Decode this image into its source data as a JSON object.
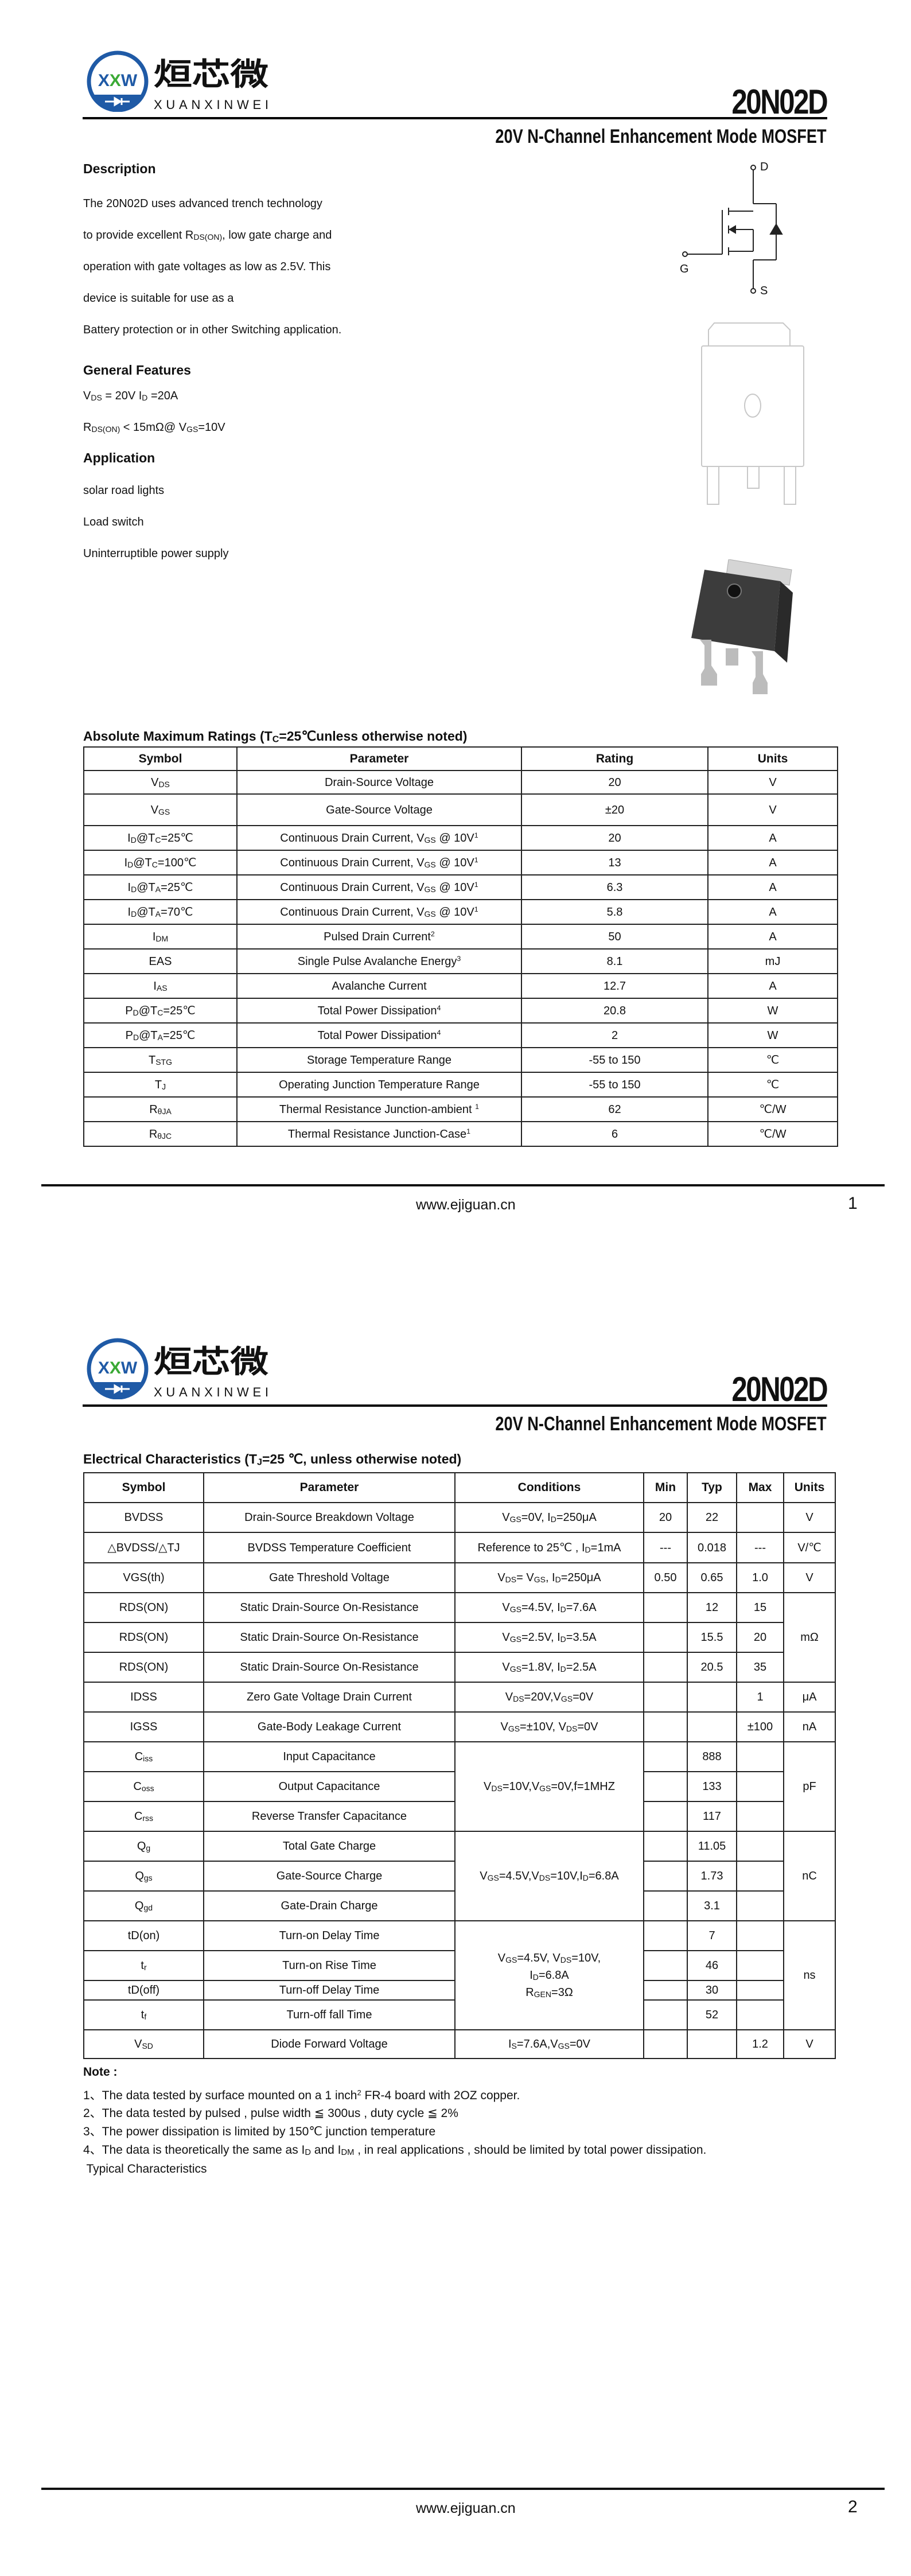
{
  "document": {
    "part_number": "20N02D",
    "subtitle": "20V N-Channel Enhancement Mode MOSFET",
    "logo": {
      "mark": "XXW",
      "name_cn": "烜芯微",
      "name_en": "XUANXINWEI",
      "brand_blue": "#1f5aa6",
      "brand_green": "#3aa935"
    },
    "website": "www.ejiguan.cn"
  },
  "page1": {
    "page_number": "1",
    "description": {
      "heading": "Description",
      "lines": [
        "The 20N02D uses advanced trench technology",
        "to provide excellent R_{DS(ON)}, low gate charge and",
        "operation with gate voltages as low as 2.5V. This",
        "device is suitable for use as a",
        "Battery protection or in other Switching application."
      ]
    },
    "features": {
      "heading": "General Features",
      "lines": [
        "V_{DS} = 20V  I_{D} =20A",
        "R_{DS(ON)} < 15mΩ@ V_{GS}=10V"
      ]
    },
    "application": {
      "heading": "Application",
      "lines": [
        "solar road lights",
        "Load switch",
        "Uninterruptible power supply"
      ]
    },
    "schematic": {
      "pins": [
        "D",
        "G",
        "S"
      ]
    },
    "abs_max": {
      "title": "Absolute Maximum Ratings (T_{C}=25℃unless otherwise noted)",
      "headers": [
        "Symbol",
        "Parameter",
        "Rating",
        "Units"
      ],
      "rows": [
        [
          "V_{DS}",
          "Drain-Source Voltage",
          "20",
          "V"
        ],
        [
          "V_{GS}",
          "Gate-Source Voltage",
          "±20",
          "V"
        ],
        [
          "I_{D}@T_{C}=25℃",
          "Continuous Drain Current, V_{GS} @ 10V^{1}",
          "20",
          "A"
        ],
        [
          "I_{D}@T_{C}=100℃",
          "Continuous Drain Current, V_{GS} @ 10V^{1}",
          "13",
          "A"
        ],
        [
          "I_{D}@T_{A}=25℃",
          "Continuous Drain Current, V_{GS} @ 10V^{1}",
          "6.3",
          "A"
        ],
        [
          "I_{D}@T_{A}=70℃",
          "Continuous Drain Current, V_{GS} @ 10V^{1}",
          "5.8",
          "A"
        ],
        [
          "I_{DM}",
          "Pulsed Drain Current^{2}",
          "50",
          "A"
        ],
        [
          "EAS",
          "Single Pulse Avalanche Energy^{3}",
          "8.1",
          "mJ"
        ],
        [
          "I_{AS}",
          "Avalanche Current",
          "12.7",
          "A"
        ],
        [
          "P_{D}@T_{C}=25℃",
          "Total Power Dissipation^{4}",
          "20.8",
          "W"
        ],
        [
          "P_{D}@T_{A}=25℃",
          "Total Power Dissipation^{4}",
          "2",
          "W"
        ],
        [
          "T_{STG}",
          "Storage Temperature Range",
          "-55 to 150",
          "℃"
        ],
        [
          "T_{J}",
          "Operating Junction Temperature Range",
          "-55 to 150",
          "℃"
        ],
        [
          "R_{θJA}",
          "Thermal Resistance Junction-ambient ^{1}",
          "62",
          "℃/W"
        ],
        [
          "R_{θJC}",
          "Thermal Resistance Junction-Case^{1}",
          "6",
          "℃/W"
        ]
      ]
    }
  },
  "page2": {
    "page_number": "2",
    "elec": {
      "title": "Electrical Characteristics (T_{J}=25 ℃, unless otherwise noted)",
      "headers": [
        "Symbol",
        "Parameter",
        "Conditions",
        "Min",
        "Typ",
        "Max",
        "Units"
      ],
      "rows": [
        [
          "BVDSS",
          "Drain-Source Breakdown Voltage",
          "V_{GS}=0V, I_{D}=250μA",
          "20",
          "22",
          "",
          "V"
        ],
        [
          "△BVDSS/△TJ",
          "BVDSS Temperature Coefficient",
          "Reference to 25℃ , I_{D}=1mA",
          "---",
          "0.018",
          "---",
          "V/℃"
        ],
        [
          "VGS(th)",
          "Gate Threshold Voltage",
          "V_{DS}= V_{GS}, I_{D}=250μA",
          "0.50",
          "0.65",
          "1.0",
          "V"
        ],
        [
          "RDS(ON)",
          "Static Drain-Source On-Resistance",
          "V_{GS}=4.5V, I_{D}=7.6A",
          "",
          "12",
          "15",
          "mΩ"
        ],
        [
          "RDS(ON)",
          "Static Drain-Source On-Resistance",
          "V_{GS}=2.5V, I_{D}=3.5A",
          "",
          "15.5",
          "20",
          null
        ],
        [
          "RDS(ON)",
          "Static Drain-Source On-Resistance",
          "V_{GS}=1.8V, I_{D}=2.5A",
          "",
          "20.5",
          "35",
          null
        ],
        [
          "IDSS",
          "Zero Gate Voltage Drain Current",
          "V_{DS}=20V,V_{GS}=0V",
          "",
          "",
          "1",
          "μA"
        ],
        [
          "IGSS",
          "Gate-Body Leakage Current",
          "V_{GS}=±10V, V_{DS}=0V",
          "",
          "",
          "±100",
          "nA"
        ],
        [
          "C_{iss}",
          "Input Capacitance",
          "V_{DS}=10V,V_{GS}=0V,f=1MHZ",
          "",
          "888",
          "",
          "pF"
        ],
        [
          "C_{oss}",
          "Output Capacitance",
          null,
          "",
          "133",
          "",
          null
        ],
        [
          "C_{rss}",
          "Reverse Transfer Capacitance",
          null,
          "",
          "117",
          "",
          null
        ],
        [
          "Q_{g}",
          "Total Gate Charge",
          "V_{GS}=4.5V,V_{DS}=10V,I_{D}=6.8A",
          "",
          "11.05",
          "",
          "nC"
        ],
        [
          "Q_{gs}",
          "Gate-Source Charge",
          null,
          "",
          "1.73",
          "",
          null
        ],
        [
          "Q_{gd}",
          "Gate-Drain Charge",
          null,
          "",
          "3.1",
          "",
          null
        ],
        [
          "tD(on)",
          "Turn-on Delay Time",
          "V_{GS}=4.5V, V_{DS}=10V,|I_{D}=6.8A|R_{GEN}=3Ω",
          "",
          "7",
          "",
          "ns"
        ],
        [
          "t_{r}",
          "Turn-on Rise Time",
          null,
          "",
          "46",
          "",
          null
        ],
        [
          "tD(off)",
          "Turn-off Delay Time",
          null,
          "",
          "30",
          "",
          null
        ],
        [
          "t_{f}",
          "Turn-off fall Time",
          null,
          "",
          "52",
          "",
          null
        ],
        [
          "V_{SD}",
          "Diode Forward Voltage",
          "I_{S}=7.6A,V_{GS}=0V",
          "",
          "",
          "1.2",
          "V"
        ]
      ]
    },
    "note_label": "Note :",
    "notes": [
      "1、The data tested by surface mounted on a 1 inch^{2} FR-4 board with 2OZ copper.",
      "2、The data tested by pulsed , pulse width ≦ 300us , duty cycle ≦ 2%",
      "3、The power dissipation is limited by 150℃ junction temperature",
      "4、The data is theoretically the same as I_{D} and I_{DM} , in real applications , should be limited by total power dissipation."
    ],
    "typical_label": " Typical Characteristics"
  }
}
